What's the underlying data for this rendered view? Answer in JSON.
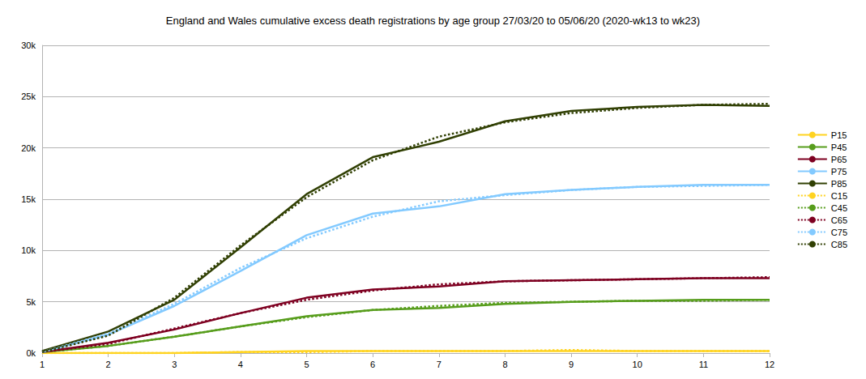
{
  "chart_data": {
    "type": "line",
    "title": "England and Wales cumulative excess death registrations by age group 27/03/20 to 05/06/20 (2020-wk13 to wk23)",
    "x": [
      1,
      2,
      3,
      4,
      5,
      6,
      7,
      8,
      9,
      10,
      11,
      12
    ],
    "xlim": [
      1,
      12
    ],
    "xticks": [
      1,
      2,
      3,
      4,
      5,
      6,
      7,
      8,
      9,
      10,
      11,
      12
    ],
    "ylim": [
      0,
      30000
    ],
    "yticks": [
      {
        "value": 0,
        "label": "0k"
      },
      {
        "value": 5000,
        "label": "5k"
      },
      {
        "value": 10000,
        "label": "10k"
      },
      {
        "value": 15000,
        "label": "15k"
      },
      {
        "value": 20000,
        "label": "20k"
      },
      {
        "value": 25000,
        "label": "25k"
      },
      {
        "value": 30000,
        "label": "30k"
      }
    ],
    "grid": true,
    "legend": "right",
    "series": [
      {
        "name": "P15",
        "color": "#ffd320",
        "line_style": "solid",
        "values": [
          0,
          0,
          0,
          100,
          200,
          200,
          200,
          200,
          200,
          200,
          200,
          200
        ]
      },
      {
        "name": "P45",
        "color": "#579d1c",
        "line_style": "solid",
        "values": [
          100,
          700,
          1600,
          2600,
          3600,
          4200,
          4400,
          4800,
          5000,
          5100,
          5200,
          5200
        ]
      },
      {
        "name": "P65",
        "color": "#7e0021",
        "line_style": "solid",
        "values": [
          100,
          1000,
          2300,
          3900,
          5400,
          6200,
          6500,
          7000,
          7100,
          7200,
          7300,
          7300
        ]
      },
      {
        "name": "P75",
        "color": "#83caff",
        "line_style": "solid",
        "values": [
          100,
          1800,
          4600,
          8000,
          11500,
          13600,
          14300,
          15500,
          15900,
          16200,
          16400,
          16400
        ]
      },
      {
        "name": "P85",
        "color": "#314004",
        "line_style": "solid",
        "values": [
          200,
          2100,
          5200,
          10300,
          15500,
          19100,
          20600,
          22600,
          23600,
          24000,
          24200,
          24100
        ]
      },
      {
        "name": "C15",
        "color": "#ffd320",
        "line_style": "dotted",
        "values": [
          0,
          0,
          0,
          100,
          100,
          200,
          200,
          200,
          300,
          200,
          200,
          200
        ]
      },
      {
        "name": "C45",
        "color": "#579d1c",
        "line_style": "dotted",
        "values": [
          100,
          700,
          1600,
          2600,
          3500,
          4200,
          4600,
          4900,
          5000,
          5100,
          5100,
          5200
        ]
      },
      {
        "name": "C65",
        "color": "#7e0021",
        "line_style": "dotted",
        "values": [
          100,
          900,
          2400,
          3900,
          5200,
          6100,
          6700,
          7000,
          7100,
          7200,
          7300,
          7400
        ]
      },
      {
        "name": "C75",
        "color": "#83caff",
        "line_style": "dotted",
        "values": [
          100,
          1900,
          4800,
          8300,
          11200,
          13300,
          14800,
          15400,
          15900,
          16200,
          16300,
          16400
        ]
      },
      {
        "name": "C85",
        "color": "#314004",
        "line_style": "dotted",
        "values": [
          100,
          1700,
          5400,
          10500,
          15200,
          18800,
          21100,
          22500,
          23400,
          23900,
          24200,
          24300
        ]
      }
    ]
  }
}
